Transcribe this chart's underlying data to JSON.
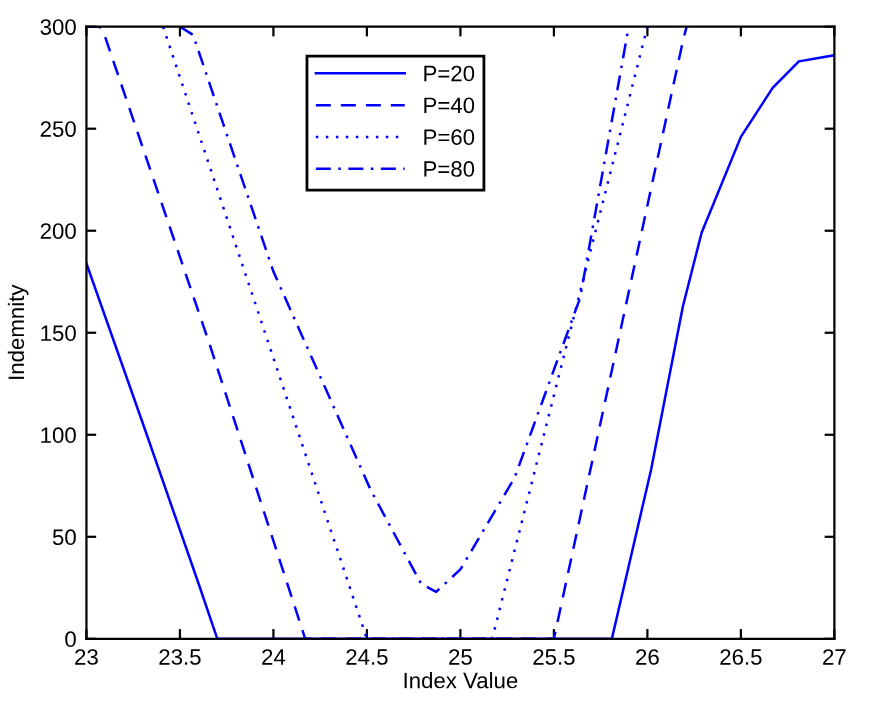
{
  "chart_data": {
    "type": "line",
    "xlabel": "Index Value",
    "ylabel": "Indemnity",
    "xlim": [
      23,
      27
    ],
    "ylim": [
      0,
      300
    ],
    "xticks": [
      23,
      23.5,
      24,
      24.5,
      25,
      25.5,
      26,
      26.5,
      27
    ],
    "yticks": [
      0,
      50,
      100,
      150,
      200,
      250,
      300
    ],
    "grid": false,
    "legend": "top",
    "marker": "none",
    "series": [
      {
        "name": "P=20",
        "color": "#0000ff",
        "line_style": "solid",
        "x": [
          23,
          23.3,
          23.6,
          23.7,
          25.81,
          26.02,
          26.19,
          26.29,
          26.5,
          26.67,
          26.81,
          27
        ],
        "values": [
          184,
          106,
          27,
          0,
          0,
          83,
          163,
          199,
          246,
          270,
          283,
          286
        ]
      },
      {
        "name": "P=40",
        "color": "#0000ff",
        "line_style": "dashed",
        "x": [
          23,
          23.07,
          23.1,
          23.66,
          24.17,
          25.5,
          26.19,
          26.21
        ],
        "values": [
          300,
          300,
          295,
          144,
          0,
          0,
          293,
          300
        ]
      },
      {
        "name": "P=60",
        "color": "#0000ff",
        "line_style": "dotted",
        "x": [
          23.41,
          24.5,
          25.17,
          26.0
        ],
        "values": [
          300,
          0,
          0,
          300
        ]
      },
      {
        "name": "P=80",
        "color": "#0000ff",
        "line_style": "dashdot",
        "x": [
          23.5,
          23.57,
          24.0,
          24.52,
          24.79,
          24.87,
          25.0,
          25.29,
          25.64,
          25.9
        ],
        "values": [
          300,
          296,
          180,
          73,
          27,
          23,
          34,
          79,
          167,
          300
        ]
      }
    ]
  }
}
